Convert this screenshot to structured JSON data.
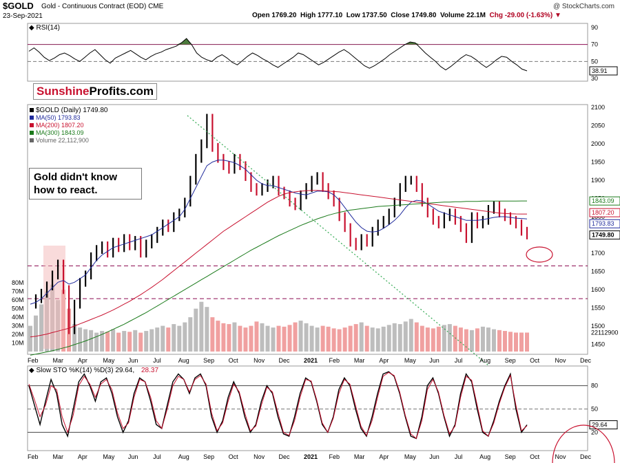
{
  "header": {
    "symbol": "$GOLD",
    "subtitle": "Gold - Continuous Contract (EOD)",
    "exchange": "CME",
    "date": "23-Sep-2021",
    "open": "Open 1769.20",
    "high": "High 1777.10",
    "low": "Low 1737.50",
    "close": "Close 1749.80",
    "volume": "Volume 22.1M",
    "chg": "Chg -29.00 (-1.63%)",
    "source": "@ StockCharts.com"
  },
  "brand": {
    "part1": "Sunshine",
    "part2": "Profits.com"
  },
  "annotation": {
    "text": "Gold didn't know how to react."
  },
  "colors": {
    "up": "#000000",
    "down": "#c8102e",
    "ma50": "#1f2a9c",
    "ma200": "#c8102e",
    "ma300": "#1a7a1a",
    "volume": "#bdbdbd",
    "volume_down": "#f0a0a0",
    "rsi": "#000000",
    "rsi_fill": "#4c7a3c",
    "stoch_k": "#000000",
    "stoch_d": "#c8102e",
    "dotted": "#2fa84f",
    "guide": "#8b0a50"
  },
  "chart_data": [
    {
      "type": "line",
      "title": "RSI(14) 38.91",
      "label": "RSI(14)",
      "value_label": "38.91",
      "ylim": [
        30,
        90
      ],
      "yticks": [
        30,
        50,
        70,
        90
      ],
      "levels": [
        70,
        50
      ],
      "series": [
        {
          "values": [
            62,
            66,
            61,
            55,
            51,
            54,
            58,
            60,
            57,
            53,
            50,
            55,
            60,
            64,
            58,
            52,
            48,
            54,
            57,
            60,
            63,
            59,
            55,
            52,
            56,
            59,
            61,
            64,
            66,
            68,
            72,
            77,
            70,
            60,
            55,
            52,
            50,
            55,
            58,
            54,
            49,
            46,
            51,
            56,
            60,
            57,
            53,
            50,
            46,
            43,
            47,
            51,
            55,
            60,
            58,
            54,
            50,
            46,
            49,
            53,
            57,
            61,
            64,
            60,
            55,
            50,
            45,
            42,
            45,
            49,
            53,
            58,
            62,
            66,
            70,
            73,
            72,
            66,
            60,
            55,
            50,
            44,
            40,
            44,
            49,
            54,
            58,
            56,
            52,
            47,
            43,
            47,
            52,
            56,
            55,
            50,
            46,
            41,
            38.91
          ]
        }
      ]
    },
    {
      "type": "line",
      "title": "$GOLD (Daily) 1749.80",
      "legend": [
        "$GOLD (Daily) 1749.80",
        "MA(50) 1793.83",
        "MA(200) 1807.20",
        "MA(300) 1843.09",
        "Volume 22,112,900"
      ],
      "ylim": [
        1430,
        2100
      ],
      "yticks": [
        1450,
        1500,
        1550,
        1600,
        1650,
        1700,
        1750,
        1800,
        1850,
        1900,
        1950,
        2000,
        2050,
        2100
      ],
      "x_labels": [
        "Feb",
        "Mar",
        "Apr",
        "May",
        "Jun",
        "Jul",
        "Aug",
        "Sep",
        "Oct",
        "Nov",
        "Dec",
        "2021",
        "Feb",
        "Mar",
        "Apr",
        "May",
        "Jun",
        "Jul",
        "Aug",
        "Sep",
        "Oct",
        "Nov",
        "Dec"
      ],
      "price_labels": [
        "1843.09",
        "1807.20",
        "1793.83",
        "1749.80"
      ],
      "guide_levels": [
        1665,
        1575
      ],
      "series": [
        {
          "name": "$GOLD (Daily)",
          "values": [
            1560,
            1575,
            1590,
            1610,
            1640,
            1670,
            1600,
            1490,
            1560,
            1620,
            1640,
            1690,
            1710,
            1720,
            1700,
            1730,
            1715,
            1740,
            1720,
            1735,
            1700,
            1725,
            1740,
            1760,
            1780,
            1770,
            1800,
            1810,
            1840,
            1900,
            1960,
            2000,
            2070,
            1990,
            1960,
            1940,
            1930,
            1960,
            1940,
            1910,
            1880,
            1870,
            1880,
            1890,
            1900,
            1870,
            1860,
            1840,
            1830,
            1860,
            1880,
            1900,
            1910,
            1880,
            1860,
            1840,
            1800,
            1770,
            1730,
            1720,
            1740,
            1730,
            1760,
            1780,
            1790,
            1810,
            1840,
            1880,
            1900,
            1900,
            1880,
            1840,
            1810,
            1790,
            1780,
            1800,
            1810,
            1790,
            1770,
            1740,
            1800,
            1780,
            1790,
            1820,
            1830,
            1810,
            1800,
            1790,
            1780,
            1760,
            1749.8
          ]
        },
        {
          "name": "MA(50)",
          "values": [
            1560,
            1565,
            1575,
            1590,
            1605,
            1620,
            1625,
            1615,
            1620,
            1630,
            1640,
            1660,
            1680,
            1695,
            1705,
            1715,
            1720,
            1725,
            1730,
            1735,
            1740,
            1745,
            1750,
            1760,
            1770,
            1780,
            1790,
            1800,
            1820,
            1850,
            1880,
            1910,
            1940,
            1950,
            1955,
            1955,
            1952,
            1948,
            1940,
            1930,
            1915,
            1900,
            1890,
            1885,
            1885,
            1880,
            1875,
            1870,
            1865,
            1862,
            1860,
            1865,
            1870,
            1870,
            1868,
            1860,
            1845,
            1825,
            1805,
            1785,
            1770,
            1760,
            1758,
            1760,
            1768,
            1778,
            1790,
            1805,
            1825,
            1840,
            1845,
            1843,
            1835,
            1825,
            1815,
            1810,
            1805,
            1800,
            1795,
            1790,
            1790,
            1790,
            1792,
            1795,
            1798,
            1800,
            1800,
            1798,
            1796,
            1795,
            1793.83
          ]
        },
        {
          "name": "MA(200)",
          "values": [
            1470,
            1472,
            1475,
            1478,
            1482,
            1486,
            1490,
            1494,
            1500,
            1506,
            1512,
            1518,
            1524,
            1530,
            1537,
            1544,
            1552,
            1560,
            1568,
            1577,
            1586,
            1596,
            1606,
            1617,
            1628,
            1640,
            1652,
            1664,
            1676,
            1688,
            1700,
            1712,
            1724,
            1736,
            1748,
            1760,
            1770,
            1780,
            1790,
            1800,
            1810,
            1820,
            1830,
            1840,
            1848,
            1856,
            1862,
            1866,
            1868,
            1870,
            1871,
            1872,
            1872,
            1871,
            1870,
            1869,
            1868,
            1866,
            1864,
            1862,
            1860,
            1858,
            1856,
            1854,
            1852,
            1850,
            1848,
            1846,
            1844,
            1842,
            1840,
            1838,
            1836,
            1834,
            1832,
            1830,
            1828,
            1826,
            1824,
            1822,
            1820,
            1818,
            1816,
            1814,
            1812,
            1810,
            1809,
            1808,
            1807.5,
            1807.2,
            1807.2
          ]
        },
        {
          "name": "MA(300)",
          "values": [
            1420,
            1423,
            1426,
            1429,
            1432,
            1436,
            1440,
            1444,
            1449,
            1454,
            1459,
            1465,
            1471,
            1477,
            1484,
            1491,
            1498,
            1505,
            1513,
            1521,
            1529,
            1537,
            1546,
            1555,
            1564,
            1573,
            1582,
            1591,
            1600,
            1609,
            1618,
            1627,
            1636,
            1645,
            1654,
            1663,
            1672,
            1681,
            1690,
            1699,
            1708,
            1716,
            1724,
            1732,
            1740,
            1748,
            1755,
            1762,
            1769,
            1776,
            1782,
            1788,
            1794,
            1799,
            1804,
            1808,
            1812,
            1815,
            1818,
            1820,
            1822,
            1824,
            1826,
            1828,
            1829,
            1830,
            1831,
            1832,
            1833,
            1834,
            1835,
            1836,
            1837,
            1838,
            1839,
            1840,
            1840,
            1841,
            1841,
            1842,
            1842,
            1842,
            1843,
            1843,
            1843,
            1843,
            1843,
            1843,
            1843,
            1843.09,
            1843.09
          ]
        }
      ],
      "volume": {
        "yticks": [
          "10M",
          "20M",
          "30M",
          "40M",
          "50M",
          "60M",
          "70M",
          "80M"
        ],
        "last_label": "22112900",
        "values": [
          30,
          42,
          55,
          70,
          78,
          60,
          72,
          50,
          32,
          28,
          26,
          25,
          22,
          24,
          23,
          26,
          22,
          24,
          23,
          25,
          22,
          24,
          26,
          28,
          30,
          28,
          32,
          30,
          34,
          40,
          50,
          58,
          52,
          40,
          36,
          33,
          32,
          34,
          30,
          28,
          30,
          35,
          33,
          30,
          28,
          30,
          29,
          31,
          34,
          36,
          33,
          30,
          28,
          30,
          29,
          27,
          26,
          28,
          30,
          32,
          34,
          30,
          28,
          27,
          29,
          31,
          33,
          32,
          35,
          38,
          34,
          30,
          28,
          27,
          29,
          31,
          32,
          30,
          28,
          26,
          25,
          27,
          29,
          28,
          26,
          25,
          24,
          23,
          22.1,
          22.1,
          22.1
        ]
      }
    },
    {
      "type": "line",
      "title": "Slow STO %K(14) %D(3) 29.64, 28.37",
      "label": "Slow STO %K(14) %D(3) 29.64,",
      "d_label": "28.37",
      "value_label": "29.64",
      "ylim": [
        0,
        100
      ],
      "yticks": [
        20,
        50,
        80
      ],
      "x_labels": [
        "Feb",
        "Mar",
        "Apr",
        "May",
        "Jun",
        "Jul",
        "Aug",
        "Sep",
        "Oct",
        "Nov",
        "Dec",
        "2021",
        "Feb",
        "Mar",
        "Apr",
        "May",
        "Jun",
        "Jul",
        "Aug",
        "Sep",
        "Oct",
        "Nov",
        "Dec"
      ],
      "series": [
        {
          "name": "%K",
          "values": [
            80,
            55,
            30,
            60,
            88,
            70,
            30,
            15,
            50,
            85,
            95,
            80,
            60,
            85,
            90,
            70,
            40,
            20,
            35,
            70,
            90,
            85,
            60,
            30,
            25,
            55,
            85,
            95,
            88,
            70,
            90,
            95,
            80,
            40,
            20,
            35,
            65,
            85,
            70,
            40,
            20,
            30,
            60,
            80,
            70,
            40,
            18,
            15,
            40,
            70,
            90,
            85,
            60,
            30,
            20,
            40,
            75,
            90,
            80,
            50,
            25,
            15,
            40,
            70,
            95,
            98,
            92,
            70,
            40,
            15,
            12,
            40,
            80,
            90,
            70,
            40,
            15,
            30,
            70,
            95,
            85,
            50,
            20,
            15,
            35,
            60,
            80,
            95,
            50,
            20,
            29.64
          ]
        },
        {
          "name": "%D",
          "values": [
            82,
            62,
            40,
            55,
            80,
            75,
            40,
            20,
            42,
            80,
            92,
            82,
            65,
            82,
            88,
            75,
            45,
            25,
            32,
            65,
            88,
            85,
            65,
            35,
            25,
            50,
            80,
            92,
            88,
            72,
            88,
            93,
            82,
            45,
            22,
            32,
            60,
            82,
            72,
            45,
            22,
            28,
            55,
            78,
            72,
            45,
            20,
            16,
            35,
            65,
            88,
            86,
            62,
            32,
            20,
            38,
            70,
            88,
            82,
            55,
            28,
            16,
            35,
            65,
            92,
            97,
            93,
            72,
            42,
            18,
            12,
            35,
            75,
            88,
            72,
            42,
            18,
            28,
            65,
            92,
            87,
            55,
            22,
            15,
            32,
            57,
            78,
            93,
            55,
            22,
            28.37
          ]
        }
      ]
    }
  ]
}
